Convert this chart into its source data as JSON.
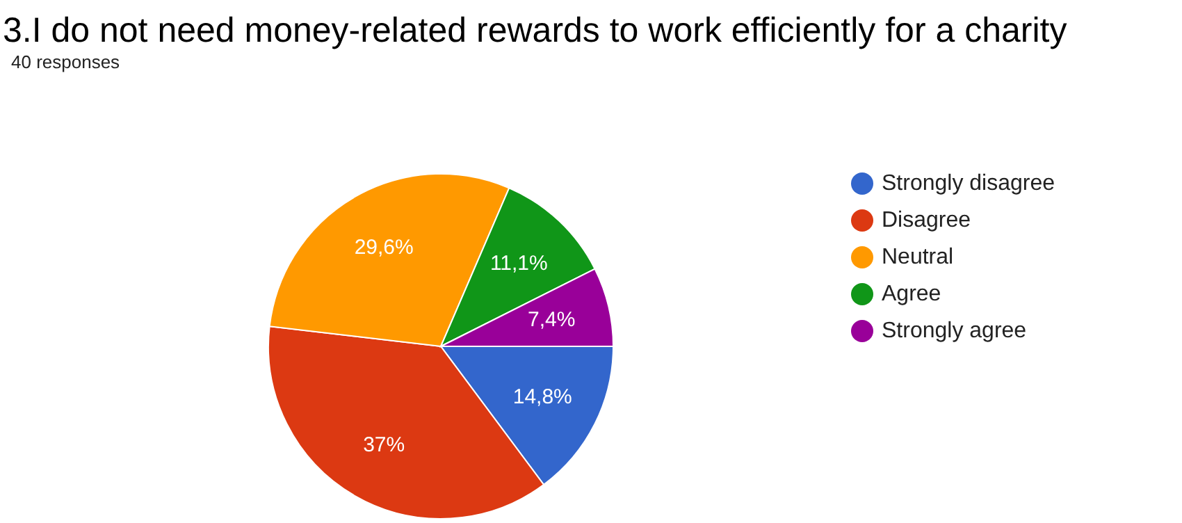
{
  "chart_data": {
    "type": "pie",
    "title": "3.I do not need money-related rewards to work efficiently for a charity",
    "subtitle": "40 responses",
    "categories": [
      "Strongly disagree",
      "Disagree",
      "Neutral",
      "Agree",
      "Strongly agree"
    ],
    "values": [
      14.8,
      37,
      29.6,
      11.1,
      7.4
    ],
    "value_labels": [
      "14,8%",
      "37%",
      "29,6%",
      "11,1%",
      "7,4%"
    ],
    "colors": [
      "#3366cc",
      "#dc3912",
      "#ff9900",
      "#109618",
      "#990099"
    ],
    "legend": "right"
  }
}
